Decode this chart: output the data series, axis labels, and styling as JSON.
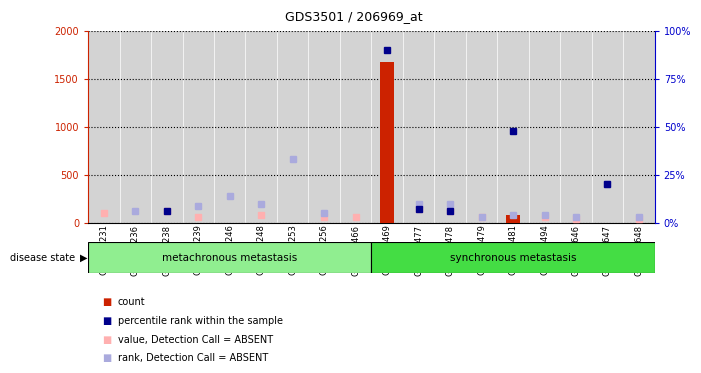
{
  "title": "GDS3501 / 206969_at",
  "samples": [
    "GSM277231",
    "GSM277236",
    "GSM277238",
    "GSM277239",
    "GSM277246",
    "GSM277248",
    "GSM277253",
    "GSM277256",
    "GSM277466",
    "GSM277469",
    "GSM277477",
    "GSM277478",
    "GSM277479",
    "GSM277481",
    "GSM277494",
    "GSM277646",
    "GSM277647",
    "GSM277648"
  ],
  "meta_count": 9,
  "sync_count": 9,
  "count_values": [
    0,
    0,
    0,
    0,
    0,
    0,
    0,
    0,
    0,
    1680,
    0,
    0,
    0,
    80,
    0,
    0,
    0,
    0
  ],
  "percentile_rank_pct": [
    5,
    3,
    6,
    3,
    5,
    2,
    3,
    3,
    3,
    90,
    7,
    6,
    3,
    48,
    4,
    3,
    20,
    3
  ],
  "value_absent": [
    5,
    0,
    6,
    3,
    0,
    4,
    0,
    3,
    3,
    0,
    7,
    6,
    3,
    0,
    3,
    2,
    0,
    2
  ],
  "rank_absent": [
    0,
    6,
    0,
    9,
    14,
    10,
    33,
    5,
    0,
    0,
    10,
    10,
    3,
    4,
    4,
    3,
    20,
    3
  ],
  "ylim_left": [
    0,
    2000
  ],
  "ylim_right": [
    0,
    100
  ],
  "yticks_left": [
    0,
    500,
    1000,
    1500,
    2000
  ],
  "yticks_right": [
    0,
    25,
    50,
    75,
    100
  ],
  "bar_color": "#cc2200",
  "percentile_color": "#00008b",
  "value_absent_color": "#ffb0b0",
  "rank_absent_color": "#aaaadd",
  "axis_color_left": "#cc2200",
  "axis_color_right": "#0000cc",
  "bg_color": "#ffffff",
  "column_bg": "#d3d3d3",
  "meta_group_color": "#90ee90",
  "sync_group_color": "#44dd44",
  "legend_items": [
    [
      "#cc2200",
      "count"
    ],
    [
      "#00008b",
      "percentile rank within the sample"
    ],
    [
      "#ffb0b0",
      "value, Detection Call = ABSENT"
    ],
    [
      "#aaaadd",
      "rank, Detection Call = ABSENT"
    ]
  ]
}
